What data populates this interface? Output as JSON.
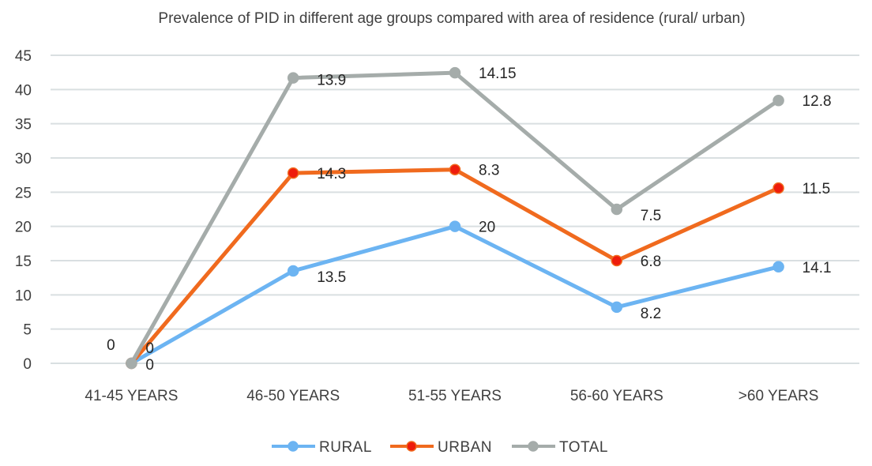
{
  "chart_data": {
    "type": "line",
    "stacked": true,
    "title": "Prevalence of PID in different age groups compared with area of residence (rural/ urban)",
    "xlabel": "",
    "ylabel": "",
    "ylim": [
      0,
      45
    ],
    "yticks": [
      0,
      5,
      10,
      15,
      20,
      25,
      30,
      35,
      40,
      45
    ],
    "ytick_labels": [
      "0",
      "5",
      "10",
      "15",
      "20",
      "25",
      "30",
      "35",
      "40",
      "45"
    ],
    "grid": true,
    "legend_position": "bottom",
    "categories": [
      "41-45 YEARS",
      "46-50 YEARS",
      "51-55 YEARS",
      "56-60 YEARS",
      ">60 YEARS"
    ],
    "series": [
      {
        "name": "RURAL",
        "color": "#6cb4f2",
        "marker_color": "#6cb4f2",
        "values": [
          0,
          13.5,
          20,
          8.2,
          14.1
        ],
        "labels": [
          "0",
          "13.5",
          "20",
          "8.2",
          "14.1"
        ]
      },
      {
        "name": "URBAN",
        "color": "#f06a1e",
        "marker_color": "#ee1c0c",
        "values": [
          0,
          14.3,
          8.3,
          6.8,
          11.5
        ],
        "labels": [
          "0",
          "14.3",
          "8.3",
          "6.8",
          "11.5"
        ]
      },
      {
        "name": "TOTAL",
        "color": "#a5acaa",
        "marker_color": "#a5acaa",
        "values": [
          0,
          13.9,
          14.15,
          7.5,
          12.8
        ],
        "labels": [
          "0",
          "13.9",
          "14.15",
          "7.5",
          "12.8"
        ]
      }
    ]
  }
}
